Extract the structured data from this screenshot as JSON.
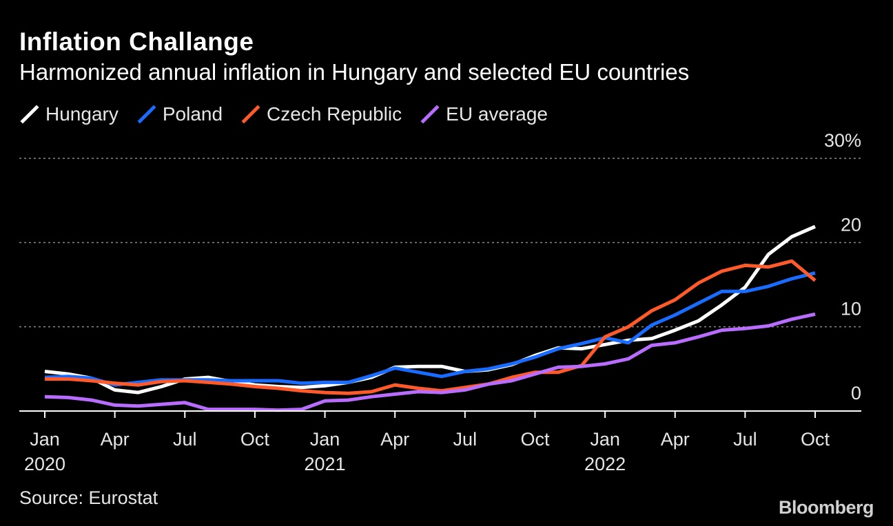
{
  "header": {
    "title": "Inflation Challange",
    "subtitle": "Harmonized annual inflation in Hungary and selected EU countries"
  },
  "footer": {
    "source": "Source: Eurostat",
    "brand": "Bloomberg"
  },
  "colors": {
    "background": "#000000",
    "Hungary": "#ffffff",
    "Poland": "#1a6cff",
    "Czech Republic": "#ff5a2a",
    "EU average": "#b86dff"
  },
  "chart_data": {
    "type": "line",
    "title": "Inflation Challange",
    "subtitle": "Harmonized annual inflation in Hungary and selected EU countries",
    "ylabel": "%",
    "ylim": [
      0,
      30
    ],
    "y_ticks": [
      {
        "value": 0,
        "label": "0"
      },
      {
        "value": 10,
        "label": "10"
      },
      {
        "value": 20,
        "label": "20"
      },
      {
        "value": 30,
        "label": "30%"
      }
    ],
    "x_ticks": [
      {
        "index": 0,
        "label": "Jan",
        "year": "2020"
      },
      {
        "index": 3,
        "label": "Apr",
        "year": ""
      },
      {
        "index": 6,
        "label": "Jul",
        "year": ""
      },
      {
        "index": 9,
        "label": "Oct",
        "year": ""
      },
      {
        "index": 12,
        "label": "Jan",
        "year": "2021"
      },
      {
        "index": 15,
        "label": "Apr",
        "year": ""
      },
      {
        "index": 18,
        "label": "Jul",
        "year": ""
      },
      {
        "index": 21,
        "label": "Oct",
        "year": ""
      },
      {
        "index": 24,
        "label": "Jan",
        "year": "2022"
      },
      {
        "index": 27,
        "label": "Apr",
        "year": ""
      },
      {
        "index": 30,
        "label": "Jul",
        "year": ""
      },
      {
        "index": 33,
        "label": "Oct",
        "year": ""
      }
    ],
    "x": [
      "2020-01",
      "2020-02",
      "2020-03",
      "2020-04",
      "2020-05",
      "2020-06",
      "2020-07",
      "2020-08",
      "2020-09",
      "2020-10",
      "2020-11",
      "2020-12",
      "2021-01",
      "2021-02",
      "2021-03",
      "2021-04",
      "2021-05",
      "2021-06",
      "2021-07",
      "2021-08",
      "2021-09",
      "2021-10",
      "2021-11",
      "2021-12",
      "2022-01",
      "2022-02",
      "2022-03",
      "2022-04",
      "2022-05",
      "2022-06",
      "2022-07",
      "2022-08",
      "2022-09",
      "2022-10"
    ],
    "grid": true,
    "legend_position": "top-left",
    "series": [
      {
        "name": "Hungary",
        "values": [
          4.7,
          4.4,
          3.9,
          2.5,
          2.2,
          2.9,
          3.8,
          4.0,
          3.5,
          3.1,
          2.9,
          2.8,
          3.0,
          3.4,
          4.0,
          5.2,
          5.3,
          5.3,
          4.7,
          4.9,
          5.5,
          6.6,
          7.5,
          7.4,
          7.9,
          8.4,
          8.6,
          9.6,
          10.7,
          12.6,
          14.7,
          18.6,
          20.7,
          21.9
        ]
      },
      {
        "name": "Poland",
        "values": [
          4.0,
          4.1,
          3.9,
          3.1,
          3.4,
          3.7,
          3.7,
          3.7,
          3.6,
          3.6,
          3.6,
          3.3,
          3.4,
          3.4,
          4.2,
          5.1,
          4.6,
          4.1,
          4.7,
          5.0,
          5.6,
          6.4,
          7.4,
          8.0,
          8.7,
          8.1,
          10.2,
          11.4,
          12.8,
          14.2,
          14.2,
          14.8,
          15.7,
          16.4
        ]
      },
      {
        "name": "Czech Republic",
        "values": [
          3.8,
          3.8,
          3.6,
          3.3,
          3.1,
          3.5,
          3.6,
          3.4,
          3.2,
          2.9,
          2.7,
          2.4,
          2.2,
          2.1,
          2.3,
          3.1,
          2.7,
          2.4,
          2.8,
          3.2,
          4.0,
          4.6,
          4.6,
          5.4,
          8.8,
          10.0,
          11.9,
          13.2,
          15.2,
          16.6,
          17.3,
          17.1,
          17.8,
          15.5
        ]
      },
      {
        "name": "EU average",
        "values": [
          1.7,
          1.6,
          1.3,
          0.7,
          0.6,
          0.8,
          1.0,
          0.2,
          0.2,
          0.2,
          0.1,
          0.2,
          1.2,
          1.3,
          1.7,
          2.0,
          2.3,
          2.2,
          2.5,
          3.2,
          3.6,
          4.4,
          5.2,
          5.3,
          5.6,
          6.2,
          7.8,
          8.1,
          8.8,
          9.6,
          9.8,
          10.1,
          10.9,
          11.5
        ]
      }
    ]
  }
}
